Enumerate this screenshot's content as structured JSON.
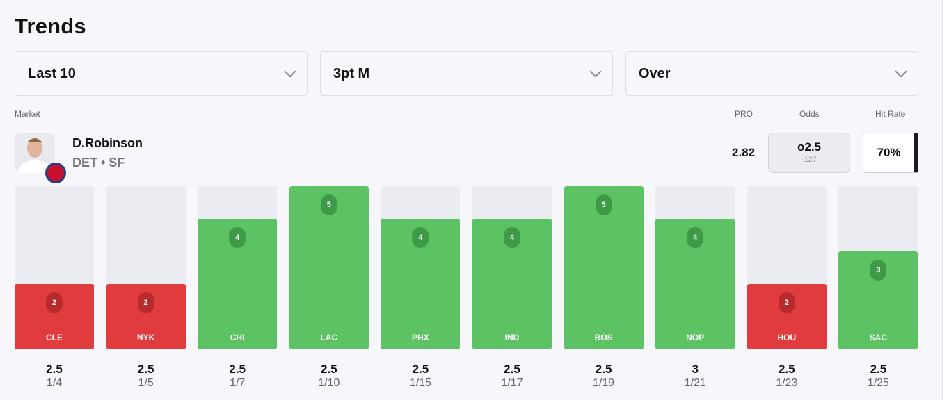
{
  "title": "Trends",
  "filters": [
    {
      "value": "Last 10"
    },
    {
      "value": "3pt M"
    },
    {
      "value": "Over"
    }
  ],
  "labels": {
    "market": "Market",
    "pro": "PRO",
    "odds": "Odds",
    "hit_rate": "Hit Rate"
  },
  "player": {
    "name": "D.Robinson",
    "team": "DET • SF",
    "pro": "2.82",
    "odds_line": "o2.5",
    "odds_price": "-127",
    "hit_rate": "70%"
  },
  "colors": {
    "hit": "#5cc264",
    "miss": "#e03c3e"
  },
  "chart_data": {
    "type": "bar",
    "max": 5,
    "categories": [
      "CLE",
      "NYK",
      "CHI",
      "LAC",
      "PHX",
      "IND",
      "BOS",
      "NOP",
      "HOU",
      "SAC"
    ],
    "values": [
      2,
      2,
      4,
      5,
      4,
      4,
      5,
      4,
      2,
      3
    ],
    "lines": [
      "2.5",
      "2.5",
      "2.5",
      "2.5",
      "2.5",
      "2.5",
      "2.5",
      "3",
      "2.5",
      "2.5"
    ],
    "dates": [
      "1/4",
      "1/5",
      "1/7",
      "1/10",
      "1/15",
      "1/17",
      "1/19",
      "1/21",
      "1/23",
      "1/25"
    ]
  }
}
